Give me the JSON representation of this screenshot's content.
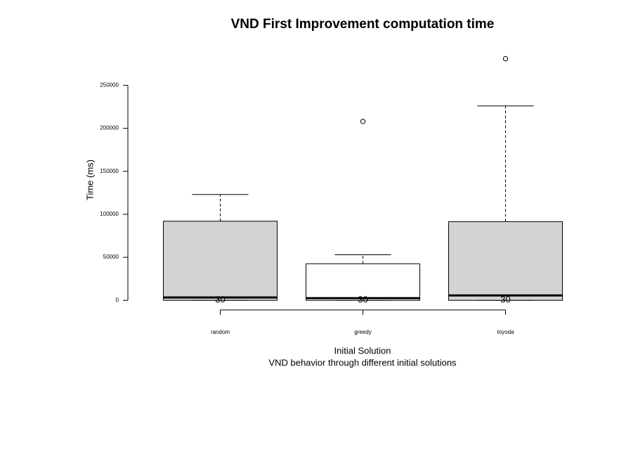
{
  "chart_data": {
    "type": "boxplot",
    "title": "VND First Improvement computation time",
    "xlabel": "Initial Solution",
    "subtitle": "VND behavior through different initial solutions",
    "ylabel": "Time (ms)",
    "categories": [
      "random",
      "greedy",
      "toyoda"
    ],
    "series": [
      {
        "name": "random",
        "color": "#d3d3d3",
        "min": 0,
        "q1": 0,
        "median": 3300,
        "q3": 92000,
        "max": 123000,
        "outliers": [],
        "n": "30"
      },
      {
        "name": "greedy",
        "color": "#ffffff",
        "min": 0,
        "q1": 0,
        "median": 2500,
        "q3": 42500,
        "max": 53000,
        "outliers": [
          208000
        ],
        "n": "30"
      },
      {
        "name": "toyoda",
        "color": "#d3d3d3",
        "min": 0,
        "q1": 0,
        "median": 5700,
        "q3": 91500,
        "max": 226000,
        "outliers": [
          281000
        ],
        "n": "30"
      }
    ],
    "ylim": [
      -11200,
      292000
    ],
    "yticks": [
      0,
      50000,
      100000,
      150000,
      200000,
      250000
    ]
  }
}
